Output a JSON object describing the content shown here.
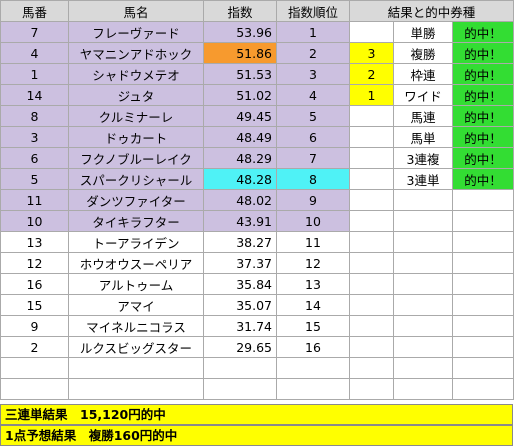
{
  "headers": {
    "number": "馬番",
    "name": "馬名",
    "index": "指数",
    "rank": "指数順位",
    "results": "結果と的中券種"
  },
  "horses": [
    {
      "number": "7",
      "name": "フレーヴァード",
      "index": "53.96",
      "rank": "1"
    },
    {
      "number": "4",
      "name": "ヤマニンアドホック",
      "index": "51.86",
      "rank": "2"
    },
    {
      "number": "1",
      "name": "シャドウメテオ",
      "index": "51.53",
      "rank": "3"
    },
    {
      "number": "14",
      "name": "ジュタ",
      "index": "51.02",
      "rank": "4"
    },
    {
      "number": "8",
      "name": "クルミナーレ",
      "index": "49.45",
      "rank": "5"
    },
    {
      "number": "3",
      "name": "ドゥカート",
      "index": "48.49",
      "rank": "6"
    },
    {
      "number": "6",
      "name": "フクノブルーレイク",
      "index": "48.29",
      "rank": "7"
    },
    {
      "number": "5",
      "name": "スパークリシャール",
      "index": "48.28",
      "rank": "8"
    },
    {
      "number": "11",
      "name": "ダンツファイター",
      "index": "48.02",
      "rank": "9"
    },
    {
      "number": "10",
      "name": "タイキラフター",
      "index": "43.91",
      "rank": "10"
    },
    {
      "number": "13",
      "name": "トーアライデン",
      "index": "38.27",
      "rank": "11"
    },
    {
      "number": "12",
      "name": "ホウオウスーペリア",
      "index": "37.37",
      "rank": "12"
    },
    {
      "number": "16",
      "name": "アルトゥーム",
      "index": "35.84",
      "rank": "13"
    },
    {
      "number": "15",
      "name": "アマイ",
      "index": "35.07",
      "rank": "14"
    },
    {
      "number": "9",
      "name": "マイネルニコラス",
      "index": "31.74",
      "rank": "15"
    },
    {
      "number": "2",
      "name": "ルクスビッグスター",
      "index": "29.65",
      "rank": "16"
    }
  ],
  "results": [
    {
      "place": "",
      "type": "単勝",
      "hit": "的中！"
    },
    {
      "place": "3",
      "type": "複勝",
      "hit": "的中！"
    },
    {
      "place": "2",
      "type": "枠連",
      "hit": "的中！"
    },
    {
      "place": "1",
      "type": "ワイド",
      "hit": "的中！"
    },
    {
      "place": "",
      "type": "馬連",
      "hit": "的中！"
    },
    {
      "place": "",
      "type": "馬単",
      "hit": "的中！"
    },
    {
      "place": "",
      "type": "3連複",
      "hit": "的中！"
    },
    {
      "place": "",
      "type": "3連単",
      "hit": "的中！"
    }
  ],
  "footer": {
    "line1": "三連単結果　15,120円的中",
    "line2": "1点予想結果　複勝160円的中"
  },
  "colors": {
    "lavender": "#ccc0e0",
    "orange": "#f79a2e",
    "cyan": "#4ff2f6",
    "yellow": "#ffff00",
    "green": "#33dd33"
  }
}
